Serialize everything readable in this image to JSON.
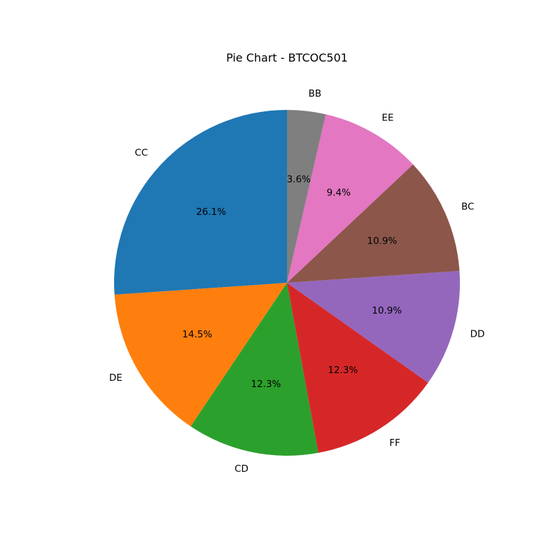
{
  "chart_data": {
    "type": "pie",
    "title": "Pie Chart - BTCOC501",
    "start_angle_deg": 90,
    "direction": "counterclockwise",
    "slices": [
      {
        "label": "CC",
        "value": 26.1,
        "pct_label": "26.1%",
        "color": "#1f77b4"
      },
      {
        "label": "DE",
        "value": 14.5,
        "pct_label": "14.5%",
        "color": "#ff7f0e"
      },
      {
        "label": "CD",
        "value": 12.3,
        "pct_label": "12.3%",
        "color": "#2ca02c"
      },
      {
        "label": "FF",
        "value": 12.3,
        "pct_label": "12.3%",
        "color": "#d62728"
      },
      {
        "label": "DD",
        "value": 10.9,
        "pct_label": "10.9%",
        "color": "#9467bd"
      },
      {
        "label": "BC",
        "value": 10.9,
        "pct_label": "10.9%",
        "color": "#8c564b"
      },
      {
        "label": "EE",
        "value": 9.4,
        "pct_label": "9.4%",
        "color": "#e377c2"
      },
      {
        "label": "BB",
        "value": 3.6,
        "pct_label": "3.6%",
        "color": "#7f7f7f"
      }
    ]
  }
}
